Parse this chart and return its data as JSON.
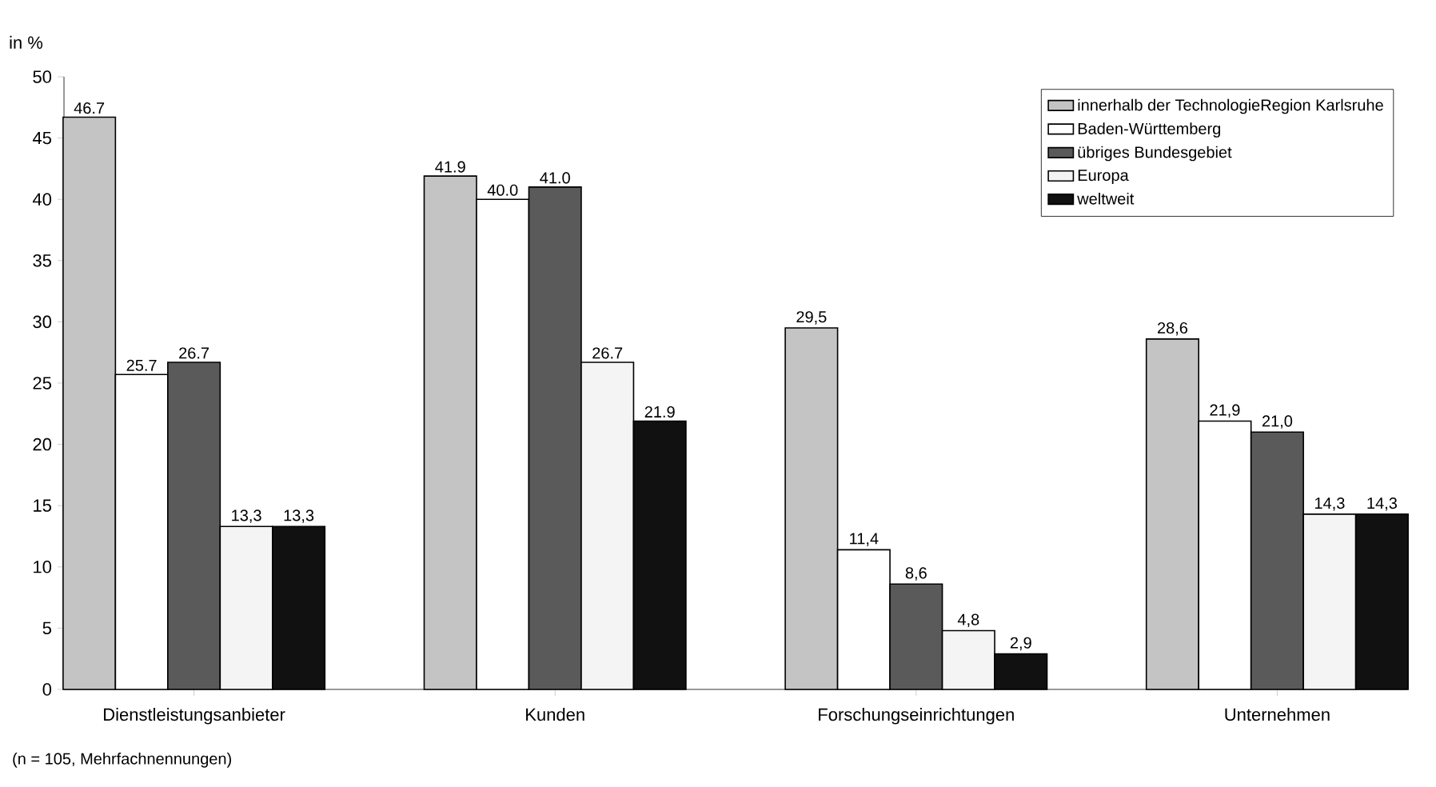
{
  "chart_data": {
    "type": "bar",
    "ylabel": "in %",
    "categories": [
      "Dienstleistungsanbieter",
      "Kunden",
      "Forschungseinrichtungen",
      "Unternehmen"
    ],
    "series": [
      {
        "name": "innerhalb der TechnologieRegion Karlsruhe",
        "color": "#c4c4c4",
        "values": [
          46.7,
          41.9,
          29.5,
          28.6
        ],
        "value_labels": [
          "46.7",
          "41.9",
          "29,5",
          "28,6"
        ]
      },
      {
        "name": "Baden-Württemberg",
        "color": "#ffffff",
        "values": [
          25.7,
          40.0,
          11.4,
          21.9
        ],
        "value_labels": [
          "25.7",
          "40.0",
          "11,4",
          "21,9"
        ]
      },
      {
        "name": "übriges Bundesgebiet",
        "color": "#5a5a5a",
        "values": [
          26.7,
          41.0,
          8.6,
          21.0
        ],
        "value_labels": [
          "26.7",
          "41.0",
          "8,6",
          "21,0"
        ]
      },
      {
        "name": "Europa",
        "color": "#f4f4f4",
        "values": [
          13.3,
          26.7,
          4.8,
          14.3
        ],
        "value_labels": [
          "13,3",
          "26.7",
          "4,8",
          "14,3"
        ]
      },
      {
        "name": "weltweit",
        "color": "#111111",
        "values": [
          13.3,
          21.9,
          2.9,
          14.3
        ],
        "value_labels": [
          "13,3",
          "21.9",
          "2,9",
          "14,3"
        ]
      }
    ],
    "ylim": [
      0,
      50
    ],
    "yticks": [
      0,
      5,
      10,
      15,
      20,
      25,
      30,
      35,
      40,
      45,
      50
    ],
    "legend": "top right",
    "annotations": [
      "(n = 105, Mehrfachnennungen)"
    ]
  }
}
